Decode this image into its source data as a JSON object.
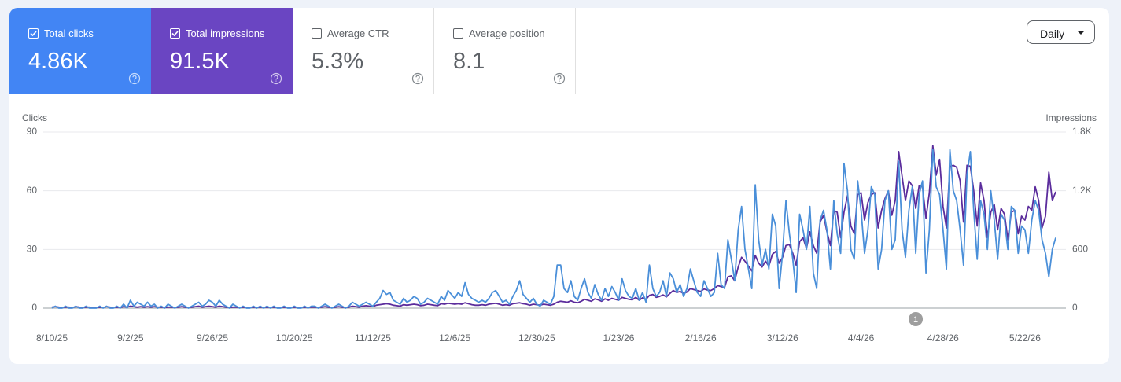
{
  "metrics": [
    {
      "label": "Total clicks",
      "value": "4.86K",
      "checked": true,
      "color": "#4285f4"
    },
    {
      "label": "Total impressions",
      "value": "91.5K",
      "checked": true,
      "color": "#6a45c2"
    },
    {
      "label": "Average CTR",
      "value": "5.3%",
      "checked": false,
      "color": "#ffffff"
    },
    {
      "label": "Average position",
      "value": "8.1",
      "checked": false,
      "color": "#ffffff"
    }
  ],
  "granularity": "Daily",
  "chart_data": {
    "type": "line",
    "y_label": "Clicks",
    "y2_label": "Impressions",
    "x": [
      "8/10/25",
      "8/11/25",
      "8/12/25",
      "8/13/25",
      "8/14/25",
      "8/15/25",
      "8/16/25",
      "8/17/25",
      "8/18/25",
      "8/19/25",
      "8/20/25",
      "8/21/25",
      "8/22/25",
      "8/23/25",
      "8/24/25",
      "8/25/25",
      "8/26/25",
      "8/27/25",
      "8/28/25",
      "8/29/25",
      "8/30/25",
      "8/31/25",
      "9/1/25",
      "9/2/25",
      "9/3/25",
      "9/4/25",
      "9/5/25",
      "9/6/25",
      "9/7/25",
      "9/8/25",
      "9/9/25",
      "9/10/25",
      "9/11/25",
      "9/12/25",
      "9/13/25",
      "9/14/25",
      "9/15/25",
      "9/16/25",
      "9/17/25",
      "9/18/25",
      "9/19/25",
      "9/20/25",
      "9/21/25",
      "9/22/25",
      "9/23/25",
      "9/24/25",
      "9/25/25",
      "9/26/25",
      "9/27/25",
      "9/28/25",
      "9/29/25",
      "9/30/25",
      "10/1/25",
      "10/2/25",
      "10/3/25",
      "10/4/25",
      "10/5/25",
      "10/6/25",
      "10/7/25",
      "10/8/25",
      "10/9/25",
      "10/10/25",
      "10/11/25",
      "10/12/25",
      "10/13/25",
      "10/14/25",
      "10/15/25",
      "10/16/25",
      "10/17/25",
      "10/18/25",
      "10/19/25",
      "10/20/25",
      "10/21/25",
      "10/22/25",
      "10/23/25",
      "10/24/25",
      "10/25/25",
      "10/26/25",
      "10/27/25",
      "10/28/25",
      "10/29/25",
      "10/30/25",
      "10/31/25",
      "11/1/25",
      "11/2/25",
      "11/3/25",
      "11/4/25",
      "11/5/25",
      "11/6/25",
      "11/7/25",
      "11/8/25",
      "11/9/25",
      "11/10/25",
      "11/11/25",
      "11/12/25",
      "11/13/25",
      "11/14/25",
      "11/15/25",
      "11/16/25",
      "11/17/25",
      "11/18/25",
      "11/19/25",
      "11/20/25",
      "11/21/25",
      "11/22/25",
      "11/23/25",
      "11/24/25",
      "11/25/25",
      "11/26/25",
      "11/27/25",
      "11/28/25",
      "11/29/25",
      "11/30/25",
      "12/1/25",
      "12/2/25",
      "12/3/25",
      "12/4/25",
      "12/5/25",
      "12/6/25",
      "12/7/25",
      "12/8/25",
      "12/9/25",
      "12/10/25",
      "12/11/25",
      "12/12/25",
      "12/13/25",
      "12/14/25",
      "12/15/25",
      "12/16/25",
      "12/17/25",
      "12/18/25",
      "12/19/25",
      "12/20/25",
      "12/21/25",
      "12/22/25",
      "12/23/25",
      "12/24/25",
      "12/25/25",
      "12/26/25",
      "12/27/25",
      "12/28/25",
      "12/29/25",
      "12/30/25",
      "12/31/25",
      "1/1/26",
      "1/2/26",
      "1/3/26",
      "1/4/26",
      "1/5/26",
      "1/6/26",
      "1/7/26",
      "1/8/26",
      "1/9/26",
      "1/10/26",
      "1/11/26",
      "1/12/26",
      "1/13/26",
      "1/14/26",
      "1/15/26",
      "1/16/26",
      "1/17/26",
      "1/18/26",
      "1/19/26",
      "1/20/26",
      "1/21/26",
      "1/22/26",
      "1/23/26",
      "1/24/26",
      "1/25/26",
      "1/26/26",
      "1/27/26",
      "1/28/26",
      "1/29/26",
      "1/30/26",
      "1/31/26",
      "2/1/26",
      "2/2/26",
      "2/3/26",
      "2/4/26",
      "2/5/26",
      "2/6/26",
      "2/7/26",
      "2/8/26",
      "2/9/26",
      "2/10/26",
      "2/11/26",
      "2/12/26",
      "2/13/26",
      "2/14/26",
      "2/15/26",
      "2/16/26",
      "2/17/26",
      "2/18/26",
      "2/19/26",
      "2/20/26",
      "2/21/26",
      "2/22/26",
      "2/23/26",
      "2/24/26",
      "2/25/26",
      "2/26/26",
      "2/27/26",
      "2/28/26",
      "3/1/26",
      "3/2/26",
      "3/3/26",
      "3/4/26",
      "3/5/26",
      "3/6/26",
      "3/7/26",
      "3/8/26",
      "3/9/26",
      "3/10/26",
      "3/11/26",
      "3/12/26",
      "3/13/26",
      "3/14/26",
      "3/15/26",
      "3/16/26",
      "3/17/26",
      "3/18/26",
      "3/19/26",
      "3/20/26",
      "3/21/26",
      "3/22/26",
      "3/23/26",
      "3/24/26",
      "3/25/26",
      "3/26/26",
      "3/27/26",
      "3/28/26",
      "3/29/26",
      "3/30/26",
      "3/31/26",
      "4/1/26",
      "4/2/26",
      "4/3/26",
      "4/4/26",
      "4/5/26",
      "4/6/26",
      "4/7/26",
      "4/8/26",
      "4/9/26",
      "4/10/26",
      "4/11/26",
      "4/12/26",
      "4/13/26",
      "4/14/26",
      "4/15/26",
      "4/16/26",
      "4/17/26",
      "4/18/26",
      "4/19/26",
      "4/20/26",
      "4/21/26",
      "4/22/26",
      "4/23/26",
      "4/24/26",
      "4/25/26",
      "4/26/26",
      "4/27/26",
      "4/28/26",
      "4/29/26",
      "4/30/26",
      "5/1/26",
      "5/2/26",
      "5/3/26",
      "5/4/26",
      "5/5/26",
      "5/6/26",
      "5/7/26",
      "5/8/26",
      "5/9/26",
      "5/10/26",
      "5/11/26",
      "5/12/26",
      "5/13/26",
      "5/14/26",
      "5/15/26",
      "5/16/26",
      "5/17/26",
      "5/18/26",
      "5/19/26",
      "5/20/26",
      "5/21/26",
      "5/22/26",
      "5/23/26",
      "5/24/26",
      "5/25/26",
      "5/26/26",
      "5/27/26",
      "5/28/26",
      "5/29/26",
      "5/30/26",
      "5/31/26"
    ],
    "series": [
      {
        "name": "Impressions",
        "axis": "y2",
        "color": "#5b2c9c",
        "values": [
          10,
          15,
          10,
          5,
          10,
          10,
          5,
          15,
          10,
          5,
          10,
          10,
          5,
          5,
          10,
          5,
          15,
          10,
          5,
          10,
          5,
          15,
          10,
          20,
          15,
          10,
          15,
          10,
          15,
          10,
          15,
          10,
          10,
          5,
          10,
          10,
          5,
          10,
          15,
          10,
          5,
          10,
          15,
          20,
          10,
          15,
          20,
          15,
          10,
          20,
          15,
          10,
          5,
          10,
          10,
          5,
          10,
          5,
          5,
          10,
          5,
          10,
          5,
          10,
          5,
          10,
          5,
          5,
          10,
          5,
          5,
          10,
          5,
          5,
          10,
          5,
          10,
          10,
          5,
          10,
          15,
          10,
          5,
          10,
          15,
          10,
          5,
          10,
          20,
          15,
          10,
          20,
          25,
          20,
          15,
          30,
          35,
          40,
          45,
          40,
          30,
          25,
          20,
          35,
          30,
          35,
          40,
          35,
          25,
          30,
          40,
          35,
          30,
          25,
          45,
          40,
          50,
          45,
          40,
          45,
          40,
          55,
          45,
          35,
          30,
          30,
          35,
          30,
          40,
          45,
          50,
          40,
          30,
          35,
          30,
          45,
          50,
          55,
          45,
          40,
          30,
          40,
          35,
          30,
          40,
          35,
          30,
          40,
          60,
          70,
          65,
          60,
          75,
          60,
          55,
          70,
          90,
          80,
          70,
          95,
          85,
          70,
          95,
          80,
          100,
          90,
          80,
          110,
          100,
          90,
          85,
          110,
          80,
          105,
          90,
          130,
          140,
          110,
          120,
          135,
          115,
          150,
          180,
          160,
          170,
          150,
          165,
          200,
          190,
          180,
          170,
          195,
          185,
          180,
          200,
          230,
          220,
          210,
          320,
          330,
          280,
          420,
          520,
          480,
          430,
          380,
          540,
          460,
          420,
          480,
          430,
          550,
          580,
          460,
          520,
          640,
          650,
          560,
          440,
          680,
          720,
          610,
          780,
          640,
          560,
          880,
          950,
          780,
          640,
          1000,
          980,
          720,
          980,
          1150,
          840,
          760,
          1160,
          1180,
          900,
          1080,
          1160,
          1180,
          820,
          1000,
          1120,
          1200,
          950,
          1100,
          1600,
          1350,
          1100,
          1300,
          1250,
          1020,
          1250,
          1240,
          920,
          1180,
          1660,
          1360,
          1520,
          1040,
          820,
          1450,
          1460,
          1440,
          1300,
          880,
          1460,
          1450,
          1200,
          840,
          1280,
          1100,
          720,
          980,
          1060,
          800,
          1020,
          960,
          700,
          980,
          1000,
          760,
          940,
          900,
          1040,
          1000,
          1240,
          1100,
          820,
          940,
          1390,
          1100,
          1190
        ]
      },
      {
        "name": "Clicks",
        "axis": "y",
        "color": "#4a8fd9",
        "values": [
          0,
          1,
          0,
          0,
          1,
          0,
          0,
          1,
          0,
          0,
          1,
          0,
          0,
          0,
          1,
          0,
          1,
          0,
          0,
          1,
          0,
          2,
          0,
          4,
          1,
          3,
          2,
          1,
          3,
          1,
          2,
          0,
          1,
          0,
          2,
          1,
          0,
          1,
          2,
          1,
          0,
          1,
          2,
          3,
          1,
          2,
          4,
          3,
          1,
          4,
          2,
          1,
          0,
          2,
          1,
          0,
          1,
          0,
          0,
          1,
          0,
          1,
          0,
          1,
          0,
          1,
          0,
          0,
          1,
          0,
          0,
          1,
          0,
          0,
          1,
          0,
          1,
          1,
          0,
          1,
          2,
          1,
          0,
          1,
          2,
          1,
          0,
          1,
          3,
          2,
          1,
          2,
          3,
          2,
          1,
          3,
          5,
          9,
          7,
          8,
          4,
          3,
          2,
          5,
          3,
          4,
          6,
          5,
          2,
          3,
          5,
          4,
          3,
          2,
          6,
          4,
          9,
          7,
          5,
          8,
          6,
          13,
          7,
          5,
          4,
          3,
          4,
          3,
          5,
          8,
          9,
          6,
          3,
          4,
          2,
          6,
          9,
          14,
          7,
          5,
          3,
          5,
          2,
          1,
          4,
          3,
          2,
          6,
          22,
          22,
          10,
          8,
          14,
          6,
          4,
          10,
          15,
          8,
          5,
          12,
          7,
          4,
          10,
          6,
          11,
          8,
          4,
          15,
          9,
          6,
          5,
          10,
          4,
          8,
          3,
          22,
          10,
          6,
          8,
          14,
          6,
          18,
          15,
          8,
          12,
          6,
          10,
          20,
          14,
          8,
          6,
          14,
          10,
          6,
          8,
          28,
          12,
          10,
          35,
          25,
          14,
          40,
          52,
          30,
          20,
          10,
          63,
          35,
          22,
          30,
          20,
          48,
          42,
          10,
          28,
          55,
          38,
          25,
          8,
          48,
          40,
          30,
          52,
          18,
          10,
          45,
          50,
          40,
          20,
          55,
          38,
          28,
          74,
          60,
          30,
          25,
          65,
          50,
          28,
          40,
          62,
          58,
          20,
          30,
          55,
          60,
          30,
          35,
          75,
          40,
          26,
          50,
          62,
          28,
          58,
          65,
          18,
          40,
          81,
          62,
          58,
          40,
          20,
          81,
          60,
          55,
          40,
          22,
          68,
          80,
          50,
          25,
          55,
          48,
          30,
          60,
          45,
          25,
          48,
          45,
          30,
          52,
          50,
          28,
          42,
          40,
          28,
          45,
          55,
          50,
          35,
          28,
          16,
          30,
          36
        ]
      }
    ],
    "ylim": [
      0,
      90
    ],
    "yticks": [
      0,
      30,
      60,
      90
    ],
    "y2lim": [
      0,
      1800
    ],
    "y2ticks": [
      0,
      600,
      {
        "value": 1200,
        "label": "1.2K"
      },
      {
        "value": 1800,
        "label": "1.8K"
      }
    ],
    "xticks": [
      "8/10/25",
      "9/2/25",
      "9/26/25",
      "10/20/25",
      "11/12/25",
      "12/6/25",
      "12/30/25",
      "1/23/26",
      "2/16/26",
      "3/12/26",
      "4/4/26",
      "4/28/26",
      "5/22/26"
    ],
    "grid": true,
    "annotations": [
      {
        "x": "4/20/26",
        "label": "1"
      }
    ]
  }
}
